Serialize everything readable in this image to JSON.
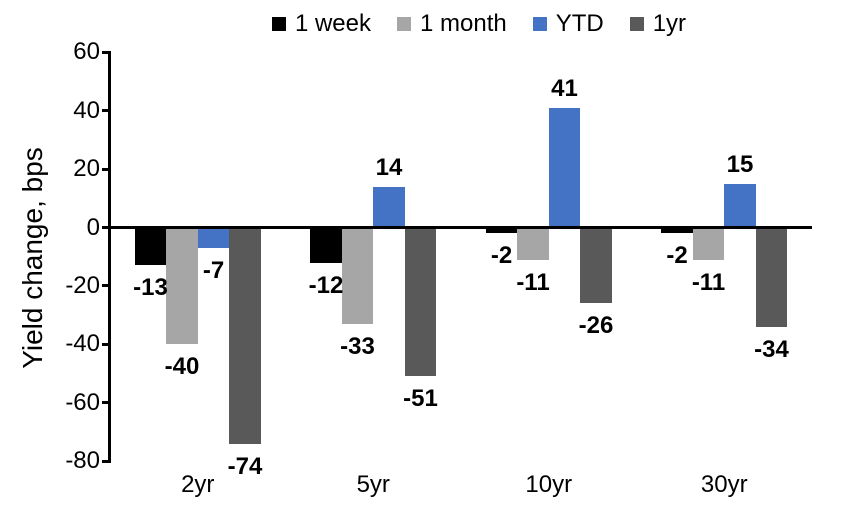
{
  "chart_data": {
    "type": "bar",
    "title": "",
    "ylabel": "Yield change, bps",
    "xlabel": "",
    "categories": [
      "2yr",
      "5yr",
      "10yr",
      "30yr"
    ],
    "series": [
      {
        "name": "1 week",
        "color": "#000000",
        "values": [
          -13,
          -12,
          -2,
          -2
        ]
      },
      {
        "name": "1 month",
        "color": "#a6a6a6",
        "values": [
          -40,
          -33,
          -11,
          -11
        ]
      },
      {
        "name": "YTD",
        "color": "#4472c4",
        "values": [
          -7,
          14,
          41,
          15
        ]
      },
      {
        "name": "1yr",
        "color": "#595959",
        "values": [
          -74,
          -51,
          -26,
          -34
        ]
      }
    ],
    "ylim": [
      -80,
      60
    ],
    "yticks": [
      60,
      40,
      20,
      0,
      -20,
      -40,
      -60,
      -80
    ],
    "grid": false,
    "legend_position": "top",
    "data_labels": "outside-end",
    "axis_color": "#000000",
    "label_color": "#000000"
  }
}
